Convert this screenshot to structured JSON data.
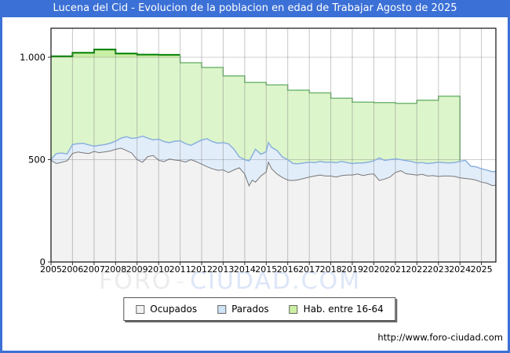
{
  "window": {
    "title": "Lucena del Cid - Evolucion de la poblacion en edad de Trabajar Agosto de 2025",
    "titlebar_color": "#3b70d6",
    "border_color": "#3b70d6"
  },
  "watermark": {
    "left": "FORO",
    "sep": "-",
    "right": "CIUDAD.COM"
  },
  "footer": {
    "url": "http://www.foro-ciudad.com"
  },
  "legend": {
    "items": [
      {
        "label": "Ocupados",
        "swatch_color": "#f2f2f2"
      },
      {
        "label": "Parados",
        "swatch_color": "#cfe3f7"
      },
      {
        "label": "Hab. entre 16-64",
        "swatch_color": "#ccf0a2"
      }
    ]
  },
  "chart_data": {
    "type": "area",
    "title": "Lucena del Cid - Evolucion de la poblacion en edad de Trabajar Agosto de 2025",
    "xlabel": "",
    "ylabel": "",
    "x_range": [
      2005.0,
      2025.67
    ],
    "y_range": [
      0,
      1140
    ],
    "grid": true,
    "legend_position": "bottom",
    "x_ticks": [
      "2005",
      "2006",
      "2007",
      "2008",
      "2009",
      "2010",
      "2011",
      "2012",
      "2013",
      "2014",
      "2015",
      "2016",
      "2017",
      "2018",
      "2019",
      "2020",
      "2021",
      "2022",
      "2023",
      "2024",
      "2025"
    ],
    "y_ticks": [
      {
        "value": 0,
        "label": "0"
      },
      {
        "value": 500,
        "label": "500"
      },
      {
        "value": 1000,
        "label": "1.000"
      }
    ],
    "x_points": [
      2005,
      2005.25,
      2005.5,
      2005.75,
      2006,
      2006.25,
      2006.5,
      2006.75,
      2007,
      2007.25,
      2007.5,
      2007.75,
      2008,
      2008.25,
      2008.5,
      2008.75,
      2009,
      2009.25,
      2009.5,
      2009.75,
      2010,
      2010.25,
      2010.5,
      2010.75,
      2011,
      2011.25,
      2011.5,
      2011.75,
      2012,
      2012.25,
      2012.5,
      2012.75,
      2013,
      2013.25,
      2013.5,
      2013.75,
      2014,
      2014.2,
      2014.35,
      2014.5,
      2014.75,
      2015,
      2015.1,
      2015.25,
      2015.5,
      2015.75,
      2016,
      2016.25,
      2016.5,
      2016.75,
      2017,
      2017.25,
      2017.5,
      2017.75,
      2018,
      2018.25,
      2018.5,
      2018.75,
      2019,
      2019.25,
      2019.5,
      2019.75,
      2020,
      2020.25,
      2020.5,
      2020.75,
      2021,
      2021.25,
      2021.5,
      2021.75,
      2022,
      2022.25,
      2022.5,
      2022.75,
      2023,
      2023.25,
      2023.5,
      2023.75,
      2024,
      2024.25,
      2024.5,
      2024.75,
      2025,
      2025.25,
      2025.5,
      2025.67
    ],
    "series": [
      {
        "name": "Hab. entre 16-64",
        "type": "step_yearly",
        "years": [
          2005,
          2006,
          2007,
          2008,
          2009,
          2010,
          2011,
          2012,
          2013,
          2014,
          2015,
          2016,
          2017,
          2018,
          2019,
          2020,
          2021,
          2022,
          2023
        ],
        "values": [
          1005,
          1022,
          1038,
          1018,
          1013,
          1012,
          973,
          950,
          909,
          877,
          865,
          839,
          826,
          800,
          781,
          779,
          775,
          790,
          810
        ],
        "no_data_from": 2024
      },
      {
        "name": "Parados",
        "type": "area_stacked_on_ocupados",
        "values": [
          5,
          49,
          45,
          34,
          44,
          41,
          47,
          42,
          26,
          36,
          36,
          38,
          40,
          49,
          67,
          72,
          106,
          128,
          90,
          76,
          103,
          98,
          80,
          92,
          97,
          90,
          70,
          93,
          118,
          137,
          133,
          132,
          133,
          140,
          101,
          53,
          70,
          122,
          120,
          161,
          106,
          99,
          96,
          105,
          115,
          100,
          100,
          83,
          78,
          76,
          73,
          65,
          66,
          67,
          68,
          70,
          69,
          61,
          56,
          54,
          62,
          60,
          64,
          111,
          91,
          85,
          67,
          54,
          64,
          63,
          60,
          58,
          61,
          62,
          70,
          65,
          64,
          68,
          80,
          89,
          63,
          65,
          65,
          64,
          68,
          68
        ]
      },
      {
        "name": "Ocupados",
        "type": "area",
        "values": [
          497,
          481,
          487,
          494,
          530,
          537,
          533,
          530,
          540,
          534,
          538,
          542,
          550,
          556,
          545,
          532,
          500,
          487,
          515,
          520,
          497,
          490,
          503,
          498,
          495,
          488,
          500,
          490,
          478,
          465,
          455,
          448,
          450,
          437,
          450,
          460,
          430,
          372,
          400,
          390,
          420,
          440,
          487,
          455,
          430,
          413,
          400,
          398,
          402,
          408,
          415,
          420,
          425,
          420,
          420,
          415,
          422,
          425,
          425,
          430,
          422,
          428,
          430,
          398,
          405,
          415,
          437,
          446,
          431,
          428,
          424,
          428,
          420,
          422,
          418,
          420,
          420,
          418,
          411,
          408,
          405,
          400,
          390,
          385,
          373,
          375
        ]
      }
    ],
    "colors": {
      "hab_fill": "#ddf5cb",
      "hab_fill_above_1000": "#c8efa5",
      "hab_line_2005_2010": "#008000",
      "hab_line_2011_2023": "#74b874",
      "parados_fill": "#e2edfa",
      "parados_line": "#8ab0dd",
      "ocupados_fill": "#f2f2f2",
      "ocupados_line": "#777777",
      "grid": "#787878",
      "plot_border": "#111111"
    }
  }
}
